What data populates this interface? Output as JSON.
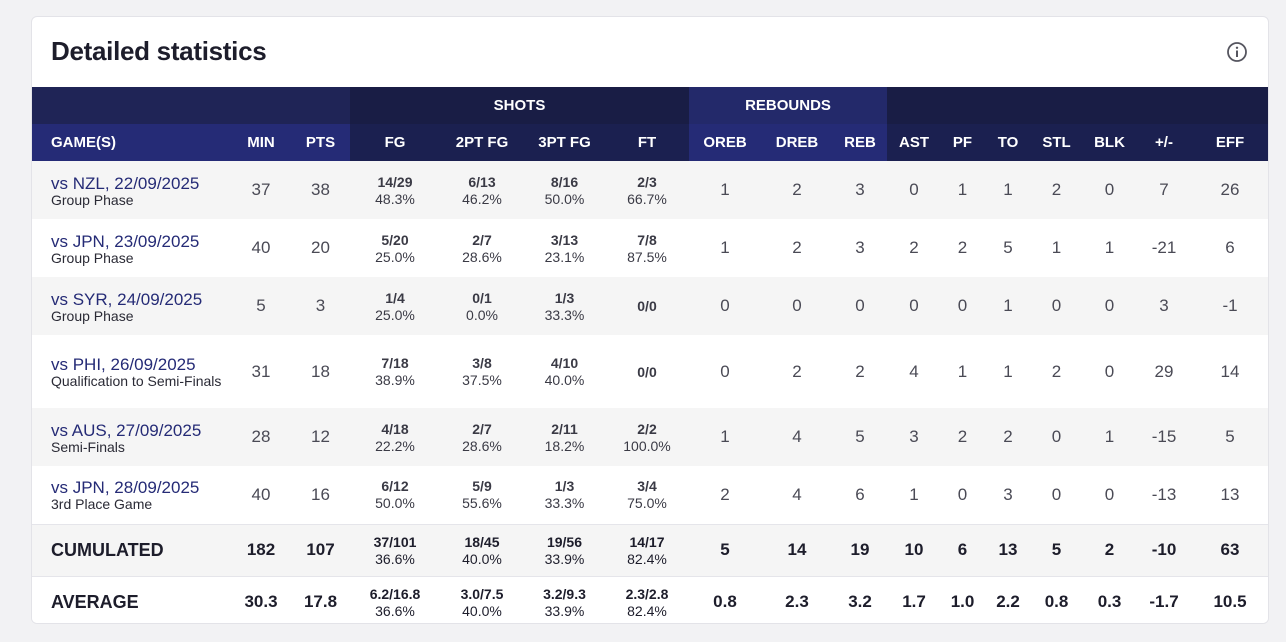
{
  "title": "Detailed statistics",
  "group_headers": {
    "shots": "SHOTS",
    "rebounds": "REBOUNDS"
  },
  "columns": {
    "game": "GAME(S)",
    "min": "MIN",
    "pts": "PTS",
    "fg": "FG",
    "fg2": "2PT FG",
    "fg3": "3PT FG",
    "ft": "FT",
    "oreb": "OREB",
    "dreb": "DREB",
    "reb": "REB",
    "ast": "AST",
    "pf": "PF",
    "to": "TO",
    "stl": "STL",
    "blk": "BLK",
    "pm": "+/-",
    "eff": "EFF"
  },
  "games": [
    {
      "game": "vs NZL, 22/09/2025",
      "phase": "Group Phase",
      "min": "37",
      "pts": "38",
      "fg": {
        "made": "14/29",
        "pct": "48.3%"
      },
      "fg2": {
        "made": "6/13",
        "pct": "46.2%"
      },
      "fg3": {
        "made": "8/16",
        "pct": "50.0%"
      },
      "ft": {
        "made": "2/3",
        "pct": "66.7%"
      },
      "oreb": "1",
      "dreb": "2",
      "reb": "3",
      "ast": "0",
      "pf": "1",
      "to": "1",
      "stl": "2",
      "blk": "0",
      "pm": "7",
      "eff": "26"
    },
    {
      "game": "vs JPN, 23/09/2025",
      "phase": "Group Phase",
      "min": "40",
      "pts": "20",
      "fg": {
        "made": "5/20",
        "pct": "25.0%"
      },
      "fg2": {
        "made": "2/7",
        "pct": "28.6%"
      },
      "fg3": {
        "made": "3/13",
        "pct": "23.1%"
      },
      "ft": {
        "made": "7/8",
        "pct": "87.5%"
      },
      "oreb": "1",
      "dreb": "2",
      "reb": "3",
      "ast": "2",
      "pf": "2",
      "to": "5",
      "stl": "1",
      "blk": "1",
      "pm": "-21",
      "eff": "6"
    },
    {
      "game": "vs SYR, 24/09/2025",
      "phase": "Group Phase",
      "min": "5",
      "pts": "3",
      "fg": {
        "made": "1/4",
        "pct": "25.0%"
      },
      "fg2": {
        "made": "0/1",
        "pct": "0.0%"
      },
      "fg3": {
        "made": "1/3",
        "pct": "33.3%"
      },
      "ft": {
        "made": "0/0",
        "pct": ""
      },
      "oreb": "0",
      "dreb": "0",
      "reb": "0",
      "ast": "0",
      "pf": "0",
      "to": "1",
      "stl": "0",
      "blk": "0",
      "pm": "3",
      "eff": "-1"
    },
    {
      "game": "vs PHI, 26/09/2025",
      "phase": "Qualification to Semi-Finals",
      "min": "31",
      "pts": "18",
      "fg": {
        "made": "7/18",
        "pct": "38.9%"
      },
      "fg2": {
        "made": "3/8",
        "pct": "37.5%"
      },
      "fg3": {
        "made": "4/10",
        "pct": "40.0%"
      },
      "ft": {
        "made": "0/0",
        "pct": ""
      },
      "oreb": "0",
      "dreb": "2",
      "reb": "2",
      "ast": "4",
      "pf": "1",
      "to": "1",
      "stl": "2",
      "blk": "0",
      "pm": "29",
      "eff": "14"
    },
    {
      "game": "vs AUS, 27/09/2025",
      "phase": "Semi-Finals",
      "min": "28",
      "pts": "12",
      "fg": {
        "made": "4/18",
        "pct": "22.2%"
      },
      "fg2": {
        "made": "2/7",
        "pct": "28.6%"
      },
      "fg3": {
        "made": "2/11",
        "pct": "18.2%"
      },
      "ft": {
        "made": "2/2",
        "pct": "100.0%"
      },
      "oreb": "1",
      "dreb": "4",
      "reb": "5",
      "ast": "3",
      "pf": "2",
      "to": "2",
      "stl": "0",
      "blk": "1",
      "pm": "-15",
      "eff": "5"
    },
    {
      "game": "vs JPN, 28/09/2025",
      "phase": "3rd Place Game",
      "min": "40",
      "pts": "16",
      "fg": {
        "made": "6/12",
        "pct": "50.0%"
      },
      "fg2": {
        "made": "5/9",
        "pct": "55.6%"
      },
      "fg3": {
        "made": "1/3",
        "pct": "33.3%"
      },
      "ft": {
        "made": "3/4",
        "pct": "75.0%"
      },
      "oreb": "2",
      "dreb": "4",
      "reb": "6",
      "ast": "1",
      "pf": "0",
      "to": "3",
      "stl": "0",
      "blk": "0",
      "pm": "-13",
      "eff": "13"
    }
  ],
  "cumulated": {
    "label": "CUMULATED",
    "min": "182",
    "pts": "107",
    "fg": {
      "made": "37/101",
      "pct": "36.6%"
    },
    "fg2": {
      "made": "18/45",
      "pct": "40.0%"
    },
    "fg3": {
      "made": "19/56",
      "pct": "33.9%"
    },
    "ft": {
      "made": "14/17",
      "pct": "82.4%"
    },
    "oreb": "5",
    "dreb": "14",
    "reb": "19",
    "ast": "10",
    "pf": "6",
    "to": "13",
    "stl": "5",
    "blk": "2",
    "pm": "-10",
    "eff": "63"
  },
  "average": {
    "label": "AVERAGE",
    "min": "30.3",
    "pts": "17.8",
    "fg": {
      "made": "6.2/16.8",
      "pct": "36.6%"
    },
    "fg2": {
      "made": "3.0/7.5",
      "pct": "40.0%"
    },
    "fg3": {
      "made": "3.2/9.3",
      "pct": "33.9%"
    },
    "ft": {
      "made": "2.3/2.8",
      "pct": "82.4%"
    },
    "oreb": "0.8",
    "dreb": "2.3",
    "reb": "3.2",
    "ast": "1.7",
    "pf": "1.0",
    "to": "2.2",
    "stl": "0.8",
    "blk": "0.3",
    "pm": "-1.7",
    "eff": "10.5"
  },
  "icons": {
    "info": "info-icon"
  },
  "colors": {
    "header_dark": "#191d45",
    "header_blue": "#252b76",
    "link": "#252b76"
  }
}
